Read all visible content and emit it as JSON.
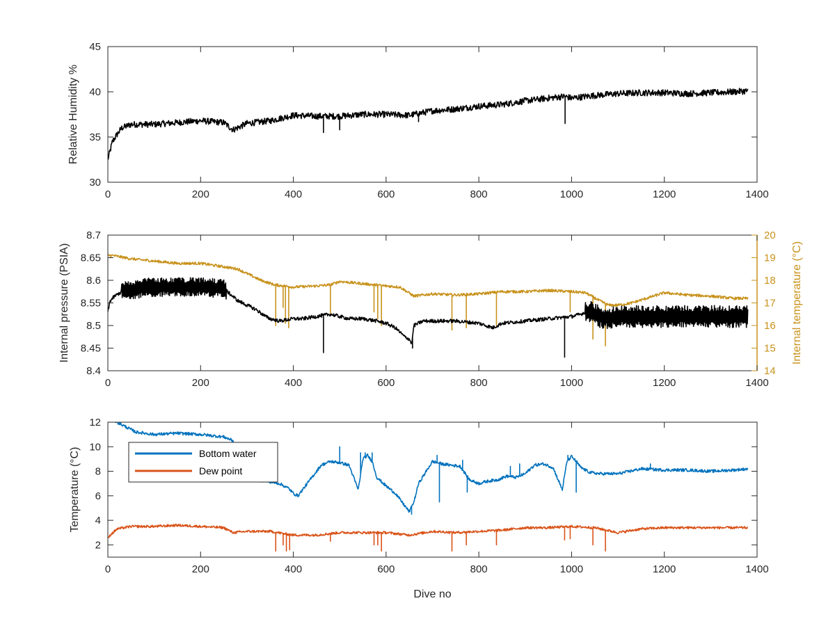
{
  "colors": {
    "black": "#000000",
    "gold": "#C8921C",
    "blue": "#0072BD",
    "orange": "#D95319",
    "axis": "#262626"
  },
  "chart_data": [
    {
      "type": "line",
      "xlabel": "",
      "ylabel": "Relative Humidity %",
      "xlim": [
        0,
        1400
      ],
      "ylim": [
        30,
        45
      ],
      "xticks": [
        "0",
        "200",
        "400",
        "600",
        "800",
        "1000",
        "1200",
        "1400"
      ],
      "yticks": [
        "30",
        "35",
        "40",
        "45"
      ],
      "series": [
        {
          "color": "#000000",
          "x": [
            0,
            5,
            10,
            20,
            30,
            50,
            100,
            150,
            200,
            250,
            270,
            300,
            350,
            400,
            450,
            500,
            550,
            600,
            650,
            700,
            750,
            800,
            850,
            900,
            950,
            985,
            1000,
            1050,
            1100,
            1150,
            1200,
            1250,
            1300,
            1350,
            1380
          ],
          "y": [
            32.5,
            33.5,
            34.5,
            35.3,
            36.0,
            36.4,
            36.4,
            36.6,
            36.8,
            36.6,
            35.8,
            36.5,
            36.8,
            37.4,
            37.3,
            37.3,
            37.5,
            37.5,
            37.4,
            37.9,
            38.1,
            38.4,
            38.6,
            39.0,
            39.3,
            39.5,
            39.3,
            39.6,
            39.8,
            39.9,
            39.9,
            39.8,
            39.9,
            40.0,
            40.1
          ],
          "noise": 0.35,
          "spikes": [
            [
              986,
              36.5
            ],
            [
              465,
              35.5
            ],
            [
              500,
              35.8
            ],
            [
              670,
              36.7
            ]
          ]
        }
      ]
    },
    {
      "type": "line",
      "xlabel": "",
      "ylabel": "Internal pressure (PSIA)",
      "ylabel_right": "Internal temperature (°C)",
      "xlim": [
        0,
        1400
      ],
      "ylim": [
        8.4,
        8.7
      ],
      "ylim_right": [
        14,
        20
      ],
      "xticks": [
        "0",
        "200",
        "400",
        "600",
        "800",
        "1000",
        "1200",
        "1400"
      ],
      "yticks": [
        "8.4",
        "8.45",
        "8.5",
        "8.55",
        "8.6",
        "8.65",
        "8.7"
      ],
      "yticks_right": [
        "14",
        "15",
        "16",
        "17",
        "18",
        "19",
        "20"
      ],
      "series": [
        {
          "axis": "right",
          "color": "#C8921C",
          "x": [
            0,
            10,
            50,
            100,
            150,
            200,
            250,
            280,
            300,
            330,
            360,
            400,
            450,
            480,
            500,
            550,
            600,
            630,
            660,
            700,
            750,
            800,
            850,
            900,
            950,
            1000,
            1030,
            1060,
            1080,
            1100,
            1130,
            1200,
            1250,
            1300,
            1350,
            1380
          ],
          "y": [
            19.1,
            19.1,
            18.95,
            18.85,
            18.75,
            18.75,
            18.6,
            18.5,
            18.3,
            18.0,
            17.8,
            17.7,
            17.75,
            17.8,
            17.95,
            17.85,
            17.75,
            17.7,
            17.3,
            17.4,
            17.35,
            17.4,
            17.5,
            17.5,
            17.55,
            17.5,
            17.45,
            17.1,
            16.9,
            16.9,
            17.0,
            17.45,
            17.35,
            17.3,
            17.2,
            17.2
          ],
          "noise": 0.06,
          "spikes": [
            [
              362,
              16.0
            ],
            [
              378,
              16.8
            ],
            [
              383,
              16.1
            ],
            [
              390,
              15.9
            ],
            [
              480,
              16.5
            ],
            [
              574,
              16.6
            ],
            [
              582,
              16.3
            ],
            [
              590,
              16.0
            ],
            [
              742,
              15.8
            ],
            [
              773,
              15.9
            ],
            [
              838,
              16.0
            ],
            [
              997,
              16.6
            ],
            [
              1046,
              15.4
            ],
            [
              1073,
              15.1
            ]
          ]
        },
        {
          "axis": "left",
          "color": "#000000",
          "x": [
            0,
            5,
            15,
            30,
            50,
            100,
            150,
            200,
            250,
            280,
            300,
            320,
            340,
            350,
            370,
            400,
            420,
            450,
            480,
            500,
            520,
            550,
            580,
            600,
            620,
            640,
            650,
            655,
            660,
            680,
            700,
            750,
            800,
            830,
            850,
            900,
            950,
            1000,
            1020,
            1030,
            1040,
            1060,
            1080,
            1100,
            1150,
            1200,
            1250,
            1300,
            1350,
            1380
          ],
          "y": [
            8.53,
            8.555,
            8.565,
            8.575,
            8.58,
            8.585,
            8.585,
            8.585,
            8.582,
            8.555,
            8.545,
            8.535,
            8.52,
            8.515,
            8.51,
            8.515,
            8.515,
            8.52,
            8.525,
            8.52,
            8.515,
            8.515,
            8.51,
            8.505,
            8.495,
            8.475,
            8.47,
            8.46,
            8.5,
            8.51,
            8.51,
            8.51,
            8.505,
            8.495,
            8.505,
            8.51,
            8.515,
            8.52,
            8.525,
            8.53,
            8.53,
            8.52,
            8.515,
            8.52,
            8.52,
            8.52,
            8.52,
            8.52,
            8.52,
            8.52
          ],
          "noise": 0.004,
          "band": [
            [
              30,
              255,
              0.03
            ],
            [
              1030,
              1385,
              0.035
            ]
          ],
          "spikes": [
            [
              465,
              8.44
            ],
            [
              657,
              8.45
            ],
            [
              985,
              8.43
            ]
          ]
        }
      ]
    },
    {
      "type": "line",
      "xlabel": "Dive no",
      "ylabel": "Temperature (°C)",
      "xlim": [
        0,
        1400
      ],
      "ylim": [
        1,
        12
      ],
      "xticks": [
        "0",
        "200",
        "400",
        "600",
        "800",
        "1000",
        "1200",
        "1400"
      ],
      "yticks": [
        "2",
        "4",
        "6",
        "8",
        "10",
        "12"
      ],
      "series": [
        {
          "name": "Bottom water",
          "color": "#0072BD",
          "x": [
            0,
            10,
            20,
            30,
            40,
            60,
            100,
            150,
            200,
            250,
            270,
            280,
            300,
            340,
            370,
            390,
            400,
            410,
            420,
            440,
            460,
            480,
            500,
            520,
            540,
            550,
            560,
            570,
            580,
            600,
            620,
            640,
            650,
            660,
            670,
            700,
            720,
            760,
            780,
            800,
            820,
            840,
            860,
            880,
            900,
            920,
            940,
            960,
            980,
            990,
            1000,
            1010,
            1020,
            1040,
            1060,
            1100,
            1150,
            1200,
            1250,
            1300,
            1350,
            1380
          ],
          "y": [
            12.5,
            12.2,
            12.0,
            11.8,
            11.6,
            11.2,
            11.0,
            11.1,
            11.0,
            10.8,
            10.5,
            7.5,
            7.4,
            7.2,
            7.0,
            6.6,
            6.2,
            6.0,
            6.5,
            7.5,
            8.5,
            8.8,
            8.7,
            8.5,
            6.5,
            9.0,
            9.3,
            8.8,
            7.5,
            6.8,
            6.2,
            5.2,
            4.7,
            5.5,
            7.0,
            8.8,
            8.6,
            8.4,
            7.3,
            7.0,
            7.2,
            7.3,
            7.6,
            7.5,
            7.8,
            8.5,
            8.6,
            8.3,
            6.5,
            8.8,
            9.2,
            8.8,
            8.3,
            7.9,
            7.8,
            7.8,
            8.2,
            8.1,
            8.1,
            8.0,
            8.1,
            8.2
          ],
          "noise": 0.12,
          "spikes": [
            [
              500,
              10.0
            ],
            [
              545,
              9.5
            ],
            [
              555,
              9.5
            ],
            [
              570,
              9.5
            ],
            [
              655,
              4.5
            ],
            [
              710,
              9.3
            ],
            [
              715,
              5.5
            ],
            [
              765,
              8.9
            ],
            [
              775,
              6.3
            ],
            [
              868,
              8.4
            ],
            [
              888,
              8.6
            ],
            [
              992,
              9.3
            ],
            [
              1010,
              6.3
            ],
            [
              1170,
              8.6
            ]
          ]
        },
        {
          "name": "Dew point",
          "color": "#D95319",
          "x": [
            0,
            5,
            20,
            50,
            100,
            150,
            200,
            250,
            270,
            300,
            350,
            400,
            450,
            500,
            550,
            600,
            650,
            700,
            750,
            800,
            850,
            900,
            950,
            1000,
            1050,
            1100,
            1150,
            1200,
            1250,
            1300,
            1350,
            1380
          ],
          "y": [
            2.5,
            2.8,
            3.3,
            3.5,
            3.5,
            3.6,
            3.5,
            3.4,
            3.0,
            3.1,
            3.1,
            2.8,
            2.8,
            3.0,
            3.0,
            3.0,
            2.8,
            3.1,
            3.0,
            3.1,
            3.2,
            3.4,
            3.4,
            3.5,
            3.4,
            3.0,
            3.3,
            3.4,
            3.4,
            3.4,
            3.4,
            3.4
          ],
          "noise": 0.1,
          "spikes": [
            [
              362,
              1.5
            ],
            [
              378,
              2.0
            ],
            [
              385,
              1.5
            ],
            [
              392,
              1.6
            ],
            [
              480,
              2.3
            ],
            [
              574,
              2.0
            ],
            [
              582,
              2.0
            ],
            [
              590,
              1.5
            ],
            [
              742,
              1.5
            ],
            [
              773,
              2.0
            ],
            [
              838,
              2.0
            ],
            [
              985,
              2.4
            ],
            [
              997,
              2.5
            ],
            [
              1046,
              2.0
            ],
            [
              1073,
              1.5
            ]
          ]
        }
      ]
    }
  ]
}
